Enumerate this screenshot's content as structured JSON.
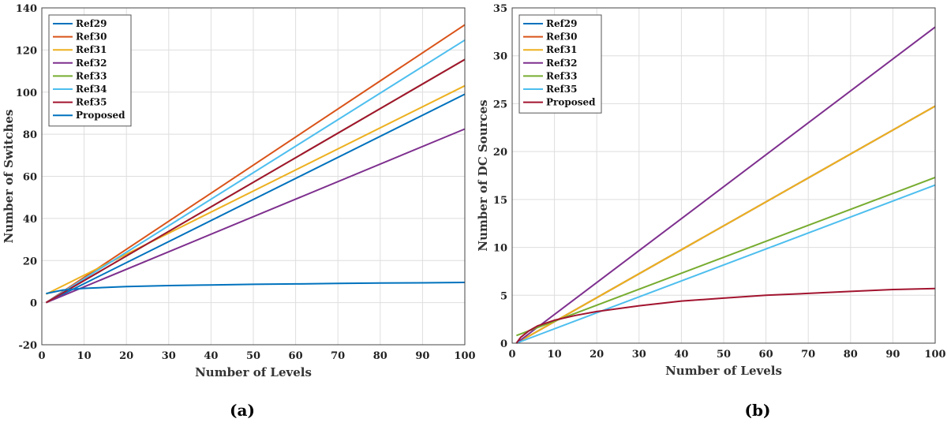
{
  "chart_data": [
    {
      "type": "line",
      "caption": "(a)",
      "xlabel": "Number of Levels",
      "ylabel": "Number of Switches",
      "xlim": [
        0,
        100
      ],
      "ylim": [
        -20,
        140
      ],
      "xticks": [
        0,
        10,
        20,
        30,
        40,
        50,
        60,
        70,
        80,
        90,
        100
      ],
      "yticks": [
        -20,
        0,
        20,
        40,
        60,
        80,
        100,
        120,
        140
      ],
      "grid": true,
      "legend": "top-left",
      "series": [
        {
          "name": "Ref29",
          "color": "#0072BD",
          "x": [
            1,
            100
          ],
          "y": [
            0,
            99
          ]
        },
        {
          "name": "Ref30",
          "color": "#D95319",
          "x": [
            1,
            100
          ],
          "y": [
            0,
            132
          ]
        },
        {
          "name": "Ref31",
          "color": "#EDB120",
          "x": [
            1,
            100
          ],
          "y": [
            4,
            103
          ]
        },
        {
          "name": "Ref32",
          "color": "#7E2F8E",
          "x": [
            1,
            100
          ],
          "y": [
            0,
            82.5
          ]
        },
        {
          "name": "Ref33",
          "color": "#77AC30",
          "x": [
            1,
            100
          ],
          "y": [
            0,
            115.5
          ]
        },
        {
          "name": "Ref34",
          "color": "#4DBEEE",
          "x": [
            1,
            100
          ],
          "y": [
            0,
            124.7
          ]
        },
        {
          "name": "Ref35",
          "color": "#A2142F",
          "x": [
            1,
            100
          ],
          "y": [
            0,
            115.5
          ]
        },
        {
          "name": "Proposed",
          "color": "#0072BD",
          "x": [
            1,
            5,
            10,
            20,
            30,
            40,
            50,
            60,
            70,
            80,
            90,
            100
          ],
          "y": [
            4.3,
            6.0,
            6.8,
            7.6,
            8.1,
            8.4,
            8.7,
            8.9,
            9.1,
            9.3,
            9.4,
            9.6
          ]
        }
      ]
    },
    {
      "type": "line",
      "caption": "(b)",
      "xlabel": "Number of Levels",
      "ylabel": "Number of DC Sources",
      "xlim": [
        0,
        100
      ],
      "ylim": [
        0,
        35
      ],
      "xticks": [
        0,
        10,
        20,
        30,
        40,
        50,
        60,
        70,
        80,
        90,
        100
      ],
      "yticks": [
        0,
        5,
        10,
        15,
        20,
        25,
        30,
        35
      ],
      "grid": true,
      "legend": "top-left",
      "series": [
        {
          "name": "Ref29",
          "color": "#0072BD",
          "x": [
            1,
            100
          ],
          "y": [
            0,
            24.75
          ]
        },
        {
          "name": "Ref30",
          "color": "#D95319",
          "x": [
            1,
            100
          ],
          "y": [
            0,
            24.75
          ]
        },
        {
          "name": "Ref31",
          "color": "#EDB120",
          "x": [
            1,
            100
          ],
          "y": [
            0,
            24.75
          ]
        },
        {
          "name": "Ref32",
          "color": "#7E2F8E",
          "x": [
            1,
            100
          ],
          "y": [
            0,
            33
          ]
        },
        {
          "name": "Ref33",
          "color": "#77AC30",
          "x": [
            1,
            100
          ],
          "y": [
            0.8,
            17.3
          ]
        },
        {
          "name": "Ref35",
          "color": "#4DBEEE",
          "x": [
            1,
            100
          ],
          "y": [
            0,
            16.5
          ]
        },
        {
          "name": "Proposed",
          "color": "#A2142F",
          "x": [
            1,
            2,
            4,
            6,
            10,
            15,
            20,
            30,
            40,
            50,
            60,
            70,
            80,
            90,
            100
          ],
          "y": [
            0.0,
            0.6,
            1.3,
            1.8,
            2.4,
            2.9,
            3.3,
            3.9,
            4.4,
            4.7,
            5.0,
            5.2,
            5.4,
            5.6,
            5.7
          ]
        }
      ]
    }
  ]
}
